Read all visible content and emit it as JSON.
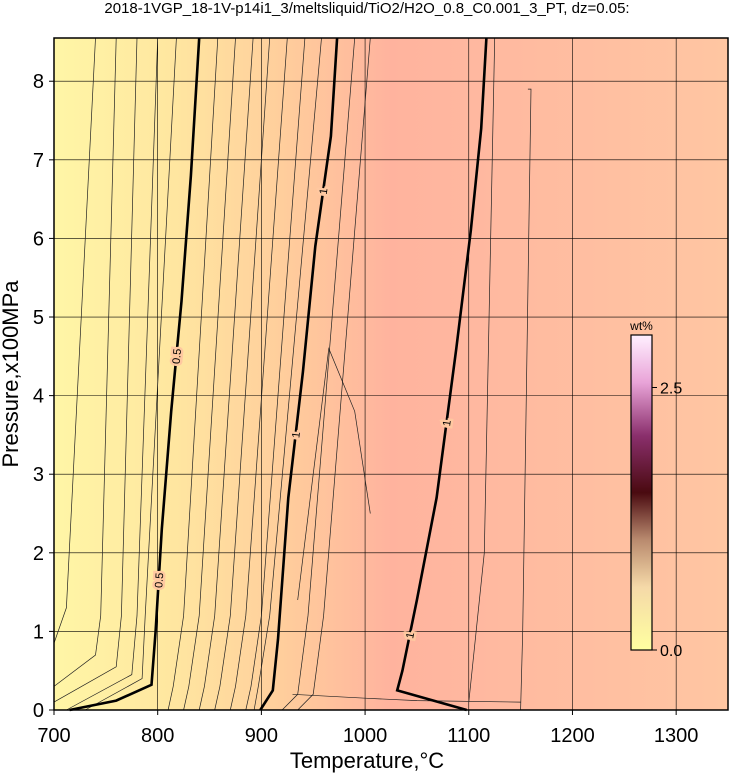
{
  "chart_data": {
    "type": "contour",
    "title": "2018-1VGP_18-1V-p14i1_3/meltsliquid/TiO2/H2O_0.8_C0.001_3_PT, dz=0.05:",
    "x_label": "Temperature,°C",
    "y_label": "Pressure,x100MPa",
    "xlim": [
      700,
      1350
    ],
    "ylim": [
      0,
      8.55
    ],
    "xticks": [
      700,
      800,
      900,
      1000,
      1100,
      1200,
      1300
    ],
    "yticks": [
      0,
      1,
      2,
      3,
      4,
      5,
      6,
      7,
      8
    ],
    "grid": true,
    "contours": [
      {
        "level": 0.5,
        "x": [
          715,
          760,
          794,
          798,
          804,
          813,
          823,
          832,
          840
        ],
        "y": [
          0,
          0.12,
          0.32,
          1,
          2.3,
          3.8,
          5.2,
          6.8,
          8.55
        ]
      },
      {
        "level": 1,
        "x": [
          899,
          911,
          916,
          926,
          940,
          952,
          967,
          973
        ],
        "y": [
          0,
          0.25,
          0.9,
          2.7,
          4.3,
          5.9,
          7.3,
          8.55
        ]
      },
      {
        "level": 1,
        "x": [
          1098,
          1031,
          1036,
          1050,
          1069,
          1088,
          1102,
          1112,
          1117
        ],
        "y": [
          0,
          0.25,
          0.5,
          1.4,
          2.7,
          4.6,
          6.1,
          7.4,
          8.55
        ]
      }
    ],
    "thin_contours": [
      {
        "x": [
          700,
          712,
          740
        ],
        "y": [
          0.85,
          1.3,
          8.55
        ]
      },
      {
        "x": [
          700,
          740,
          745,
          760
        ],
        "y": [
          0.3,
          0.7,
          1.2,
          8.55
        ]
      },
      {
        "x": [
          700,
          760,
          765,
          780
        ],
        "y": [
          0.1,
          0.55,
          1.2,
          8.55
        ]
      },
      {
        "x": [
          712,
          775,
          780,
          800
        ],
        "y": [
          0,
          0.45,
          1.2,
          8.55
        ]
      },
      {
        "x": [
          730,
          785,
          788,
          818
        ],
        "y": [
          0,
          0.4,
          1.2,
          8.55
        ]
      },
      {
        "x": [
          810,
          815,
          825,
          858
        ],
        "y": [
          0,
          0.3,
          1.2,
          8.55
        ]
      },
      {
        "x": [
          825,
          830,
          840,
          875
        ],
        "y": [
          0,
          0.3,
          1.2,
          8.55
        ]
      },
      {
        "x": [
          840,
          845,
          855,
          892
        ],
        "y": [
          0,
          0.3,
          1.2,
          8.55
        ]
      },
      {
        "x": [
          855,
          860,
          870,
          908
        ],
        "y": [
          0,
          0.3,
          1.2,
          8.55
        ]
      },
      {
        "x": [
          870,
          875,
          885,
          925
        ],
        "y": [
          0,
          0.3,
          1.2,
          8.55
        ]
      },
      {
        "x": [
          885,
          890,
          900,
          942
        ],
        "y": [
          0,
          0.3,
          1.2,
          8.55
        ]
      },
      {
        "x": [
          893,
          897,
          908,
          958
        ],
        "y": [
          0,
          0.3,
          1.2,
          8.55
        ]
      },
      {
        "x": [
          920,
          935,
          945,
          990
        ],
        "y": [
          0,
          0.2,
          1.2,
          8.55
        ]
      },
      {
        "x": [
          935,
          950,
          960,
          1005
        ],
        "y": [
          0,
          0.2,
          1.2,
          8.55
        ]
      },
      {
        "x": [
          935,
          950,
          965,
          990,
          1005
        ],
        "y": [
          1.4,
          3.0,
          4.6,
          3.8,
          2.5
        ]
      },
      {
        "x": [
          1150,
          1152,
          1160,
          1157
        ],
        "y": [
          0,
          1,
          7.9,
          7.9
        ]
      },
      {
        "x": [
          930,
          1000,
          1050,
          1150
        ],
        "y": [
          0.2,
          0.15,
          0.12,
          0.1
        ]
      },
      {
        "x": [
          1100,
          1115,
          1125
        ],
        "y": [
          0.1,
          2,
          8.55
        ]
      }
    ],
    "colorbar": {
      "label": "wt%",
      "clim": [
        0,
        3
      ],
      "ticks": [
        {
          "value": 0,
          "label": "0.0"
        },
        {
          "value": 2.5,
          "label": "2.5"
        }
      ]
    }
  }
}
